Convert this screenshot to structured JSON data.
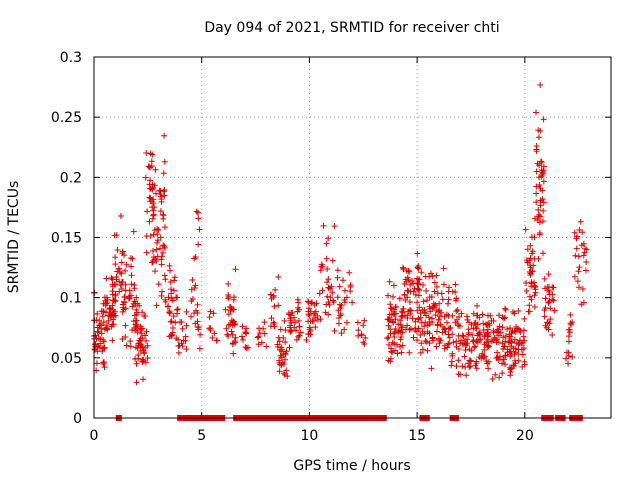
{
  "chart_data": {
    "type": "scatter",
    "title": "Day 094 of 2021, SRMTID for receiver chti",
    "xlabel": "GPS time / hours",
    "ylabel": "SRMTID / TECUs",
    "xlim": [
      0,
      24
    ],
    "ylim": [
      0,
      0.3
    ],
    "xticks": [
      0,
      5,
      10,
      15,
      20
    ],
    "yticks": [
      0,
      0.05,
      0.1,
      0.15,
      0.2,
      0.25,
      0.3
    ],
    "xtick_labels": [
      "0",
      "5",
      "10",
      "15",
      "20"
    ],
    "ytick_labels": [
      "0",
      "0.05",
      "0.1",
      "0.15",
      "0.2",
      "0.25",
      "0.3"
    ],
    "grid": true,
    "marker": "+",
    "color": "#e00000",
    "seed": 94,
    "clusters": [
      {
        "x": [
          0.0,
          0.5
        ],
        "ymin": 0.03,
        "ymax": 0.12,
        "n": 45
      },
      {
        "x": [
          0.4,
          1.0
        ],
        "ymin": 0.05,
        "ymax": 0.145,
        "n": 50
      },
      {
        "x": [
          0.9,
          1.4
        ],
        "ymin": 0.06,
        "ymax": 0.18,
        "n": 30
      },
      {
        "x": [
          1.3,
          2.0
        ],
        "ymin": 0.05,
        "ymax": 0.165,
        "n": 40
      },
      {
        "x": [
          1.9,
          2.5
        ],
        "ymin": 0.025,
        "ymax": 0.11,
        "n": 55
      },
      {
        "x": [
          2.4,
          2.8
        ],
        "ymin": 0.1,
        "ymax": 0.265,
        "n": 40
      },
      {
        "x": [
          2.8,
          3.3
        ],
        "ymin": 0.08,
        "ymax": 0.25,
        "n": 45
      },
      {
        "x": [
          3.3,
          3.9
        ],
        "ymin": 0.05,
        "ymax": 0.14,
        "n": 35
      },
      {
        "x": [
          3.9,
          4.3
        ],
        "ymin": 0.04,
        "ymax": 0.1,
        "n": 15
      },
      {
        "x": [
          4.5,
          5.0
        ],
        "ymin": 0.02,
        "ymax": 0.19,
        "n": 25
      },
      {
        "x": [
          5.3,
          5.8
        ],
        "ymin": 0.04,
        "ymax": 0.1,
        "n": 10
      },
      {
        "x": [
          6.1,
          6.6
        ],
        "ymin": 0.04,
        "ymax": 0.135,
        "n": 35
      },
      {
        "x": [
          6.8,
          7.2
        ],
        "ymin": 0.05,
        "ymax": 0.09,
        "n": 10
      },
      {
        "x": [
          7.6,
          8.0
        ],
        "ymin": 0.05,
        "ymax": 0.09,
        "n": 10
      },
      {
        "x": [
          8.2,
          8.6
        ],
        "ymin": 0.06,
        "ymax": 0.13,
        "n": 15
      },
      {
        "x": [
          8.5,
          9.0
        ],
        "ymin": 0.025,
        "ymax": 0.09,
        "n": 30
      },
      {
        "x": [
          9.0,
          9.6
        ],
        "ymin": 0.05,
        "ymax": 0.11,
        "n": 30
      },
      {
        "x": [
          9.8,
          10.5
        ],
        "ymin": 0.05,
        "ymax": 0.12,
        "n": 30
      },
      {
        "x": [
          10.5,
          11.2
        ],
        "ymin": 0.05,
        "ymax": 0.18,
        "n": 30
      },
      {
        "x": [
          11.3,
          12.0
        ],
        "ymin": 0.06,
        "ymax": 0.135,
        "n": 25
      },
      {
        "x": [
          12.2,
          12.6
        ],
        "ymin": 0.05,
        "ymax": 0.09,
        "n": 10
      },
      {
        "x": [
          13.6,
          14.3
        ],
        "ymin": 0.04,
        "ymax": 0.12,
        "n": 60
      },
      {
        "x": [
          14.3,
          15.1
        ],
        "ymin": 0.05,
        "ymax": 0.16,
        "n": 70
      },
      {
        "x": [
          15.1,
          15.8
        ],
        "ymin": 0.04,
        "ymax": 0.14,
        "n": 50
      },
      {
        "x": [
          15.8,
          16.5
        ],
        "ymin": 0.04,
        "ymax": 0.14,
        "n": 50
      },
      {
        "x": [
          16.5,
          17.5
        ],
        "ymin": 0.02,
        "ymax": 0.12,
        "n": 60
      },
      {
        "x": [
          17.5,
          18.5
        ],
        "ymin": 0.03,
        "ymax": 0.11,
        "n": 70
      },
      {
        "x": [
          18.5,
          19.4
        ],
        "ymin": 0.02,
        "ymax": 0.11,
        "n": 70
      },
      {
        "x": [
          19.4,
          20.0
        ],
        "ymin": 0.03,
        "ymax": 0.1,
        "n": 40
      },
      {
        "x": [
          20.0,
          20.5
        ],
        "ymin": 0.07,
        "ymax": 0.19,
        "n": 40
      },
      {
        "x": [
          20.5,
          20.9
        ],
        "ymin": 0.1,
        "ymax": 0.3,
        "n": 45
      },
      {
        "x": [
          20.9,
          21.4
        ],
        "ymin": 0.06,
        "ymax": 0.14,
        "n": 30
      },
      {
        "x": [
          21.9,
          22.3
        ],
        "ymin": 0.04,
        "ymax": 0.1,
        "n": 15
      },
      {
        "x": [
          22.3,
          22.9
        ],
        "ymin": 0.08,
        "ymax": 0.2,
        "n": 25
      }
    ],
    "zero_points": [
      1.15,
      4.0,
      4.15,
      4.3,
      4.45,
      4.6,
      4.75,
      4.9,
      5.05,
      5.2,
      5.35,
      5.5,
      5.65,
      5.8,
      5.95,
      6.6,
      6.75,
      6.9,
      7.1,
      7.25,
      7.45,
      7.6,
      7.8,
      8.0,
      8.15,
      8.3,
      8.5,
      8.7,
      8.95,
      9.2,
      9.4,
      9.6,
      9.85,
      10.0,
      10.15,
      10.35,
      10.5,
      10.7,
      10.85,
      11.0,
      11.25,
      11.4,
      11.6,
      11.8,
      11.95,
      12.15,
      12.3,
      12.5,
      12.65,
      12.85,
      13.0,
      13.15,
      13.3,
      13.45,
      15.25,
      15.45,
      16.65,
      16.8,
      20.9,
      21.05,
      21.2,
      21.55,
      21.75,
      22.2,
      22.4,
      22.55
    ]
  }
}
